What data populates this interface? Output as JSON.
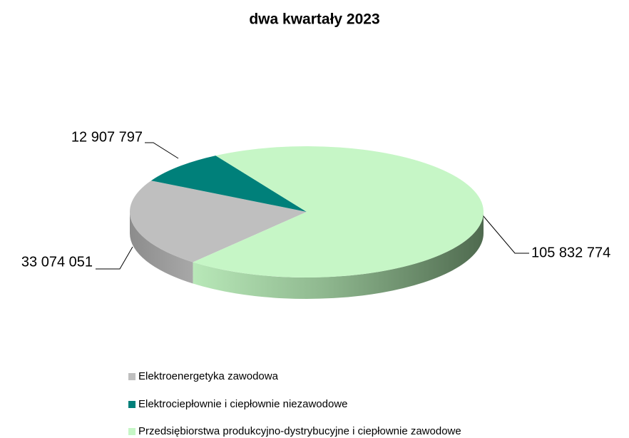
{
  "chart_data": {
    "type": "pie3d",
    "title": "dwa kwartały 2023",
    "categories": [
      "Elektroenergetyka zawodowa",
      "Elektrociepłownie i ciepłownie niezawodowe",
      "Przedsiębiorstwa produkcyjno-dystrybucyjne i ciepłownie zawodowe"
    ],
    "values": [
      33074051,
      12907797,
      105832774
    ],
    "value_labels": [
      "33 074 051",
      "12 907 797",
      "105 832 774"
    ],
    "colors": [
      "#bfbfbf",
      "#00807a",
      "#c6f6c6"
    ],
    "legend": "bottom"
  }
}
